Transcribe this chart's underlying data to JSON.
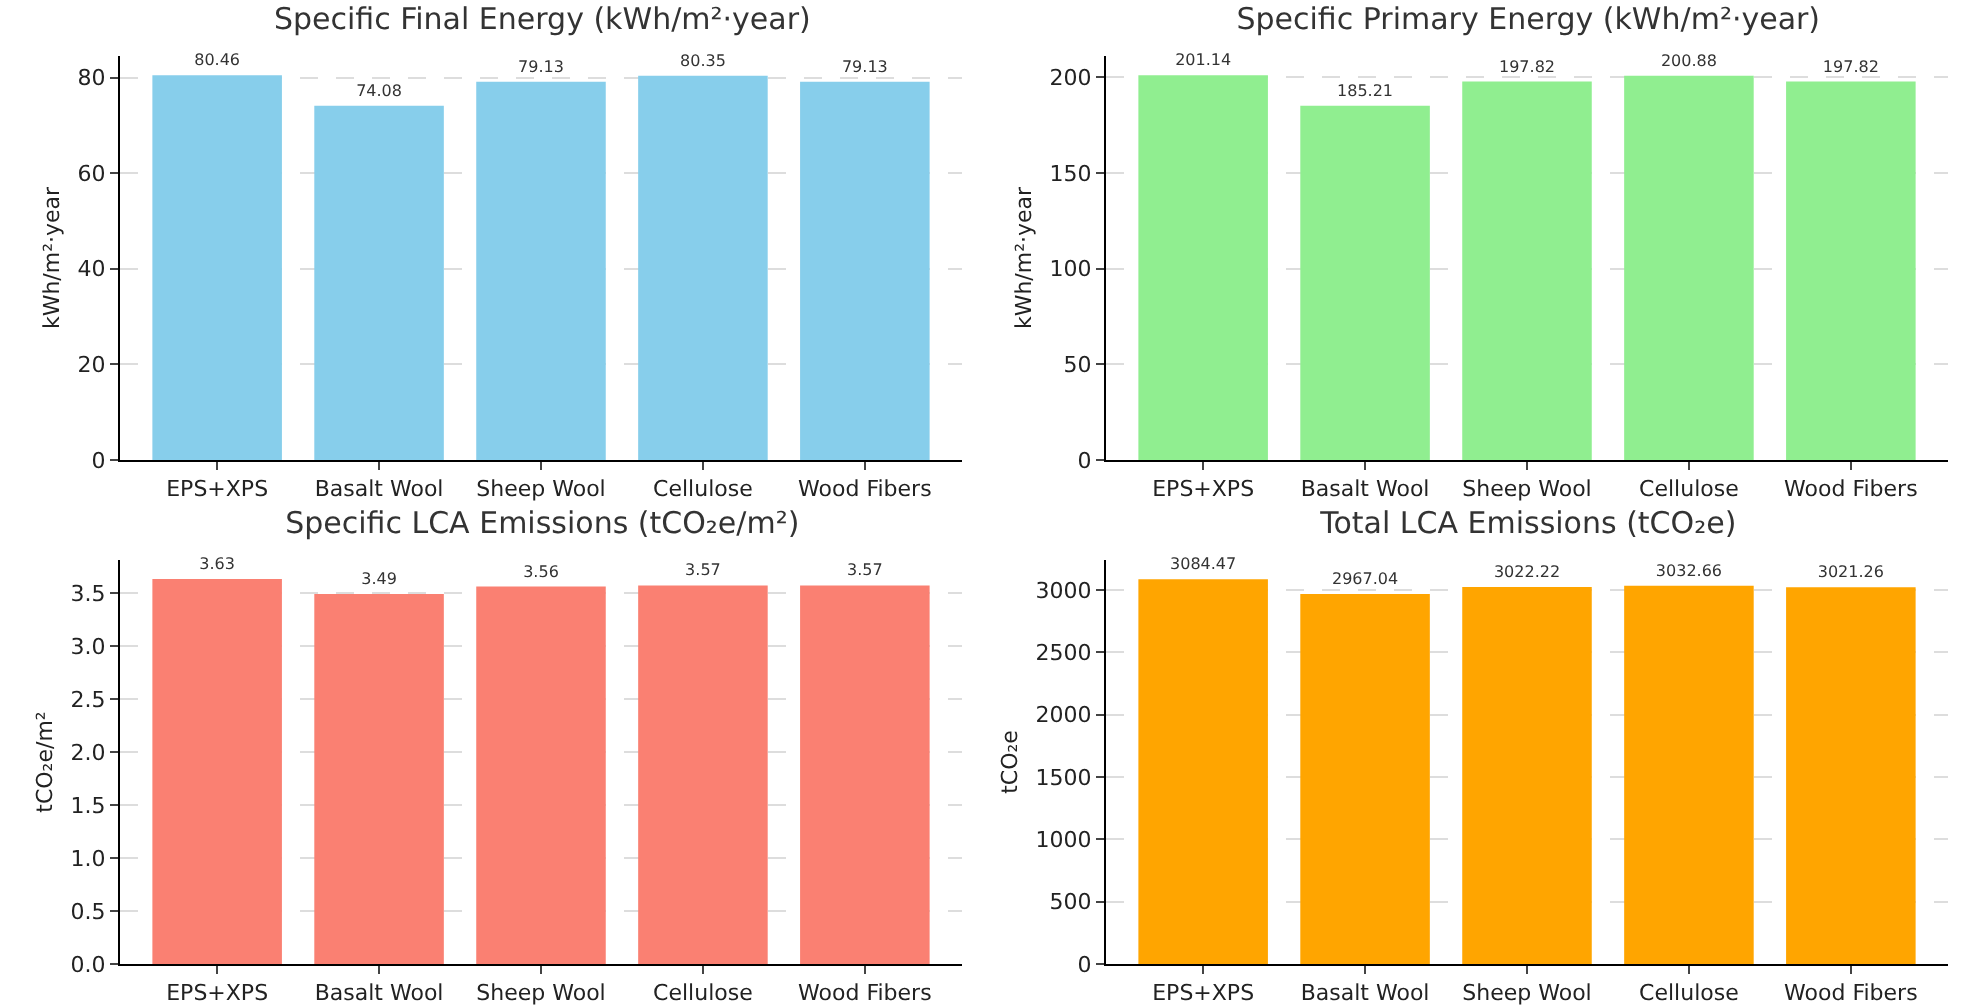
{
  "chart_data": [
    {
      "type": "bar",
      "title": "Specific Final Energy (kWh/m²·year)",
      "ylabel": "kWh/m²·year",
      "categories": [
        "EPS+XPS",
        "Basalt Wool",
        "Sheep Wool",
        "Cellulose",
        "Wood Fibers"
      ],
      "values": [
        80.46,
        74.08,
        79.13,
        80.35,
        79.13
      ],
      "color": "#87ceeb",
      "ylim": [
        0,
        84.5
      ],
      "yticks": [
        0,
        20,
        40,
        60,
        80
      ],
      "grid": "y",
      "data_labels": true
    },
    {
      "type": "bar",
      "title": "Specific Primary Energy (kWh/m²·year)",
      "ylabel": "kWh/m²·year",
      "categories": [
        "EPS+XPS",
        "Basalt Wool",
        "Sheep Wool",
        "Cellulose",
        "Wood Fibers"
      ],
      "values": [
        201.14,
        185.21,
        197.82,
        200.88,
        197.82
      ],
      "color": "#90ee90",
      "ylim": [
        0,
        211.2
      ],
      "yticks": [
        0,
        50,
        100,
        150,
        200
      ],
      "grid": "y",
      "data_labels": true
    },
    {
      "type": "bar",
      "title": "Specific LCA Emissions (tCO₂e/m²)",
      "ylabel": "tCO₂e/m²",
      "categories": [
        "EPS+XPS",
        "Basalt Wool",
        "Sheep Wool",
        "Cellulose",
        "Wood Fibers"
      ],
      "values": [
        3.63,
        3.49,
        3.56,
        3.57,
        3.57
      ],
      "color": "#fa8072",
      "ylim": [
        0,
        3.81
      ],
      "yticks": [
        {
          "value": 0,
          "label": "0.0"
        },
        {
          "value": 0.5,
          "label": "0.5"
        },
        {
          "value": 1,
          "label": "1.0"
        },
        {
          "value": 1.5,
          "label": "1.5"
        },
        {
          "value": 2,
          "label": "2.0"
        },
        {
          "value": 2.5,
          "label": "2.5"
        },
        {
          "value": 3,
          "label": "3.0"
        },
        {
          "value": 3.5,
          "label": "3.5"
        }
      ],
      "grid": "y",
      "data_labels": true
    },
    {
      "type": "bar",
      "title": "Total LCA Emissions (tCO₂e)",
      "ylabel": "tCO₂e",
      "categories": [
        "EPS+XPS",
        "Basalt Wool",
        "Sheep Wool",
        "Cellulose",
        "Wood Fibers"
      ],
      "values": [
        3084.47,
        2967.04,
        3022.22,
        3032.66,
        3021.26
      ],
      "color": "#ffa500",
      "ylim": [
        0,
        3239
      ],
      "yticks": [
        0,
        500,
        1000,
        1500,
        2000,
        2500,
        3000
      ],
      "grid": "y",
      "data_labels": true
    }
  ]
}
